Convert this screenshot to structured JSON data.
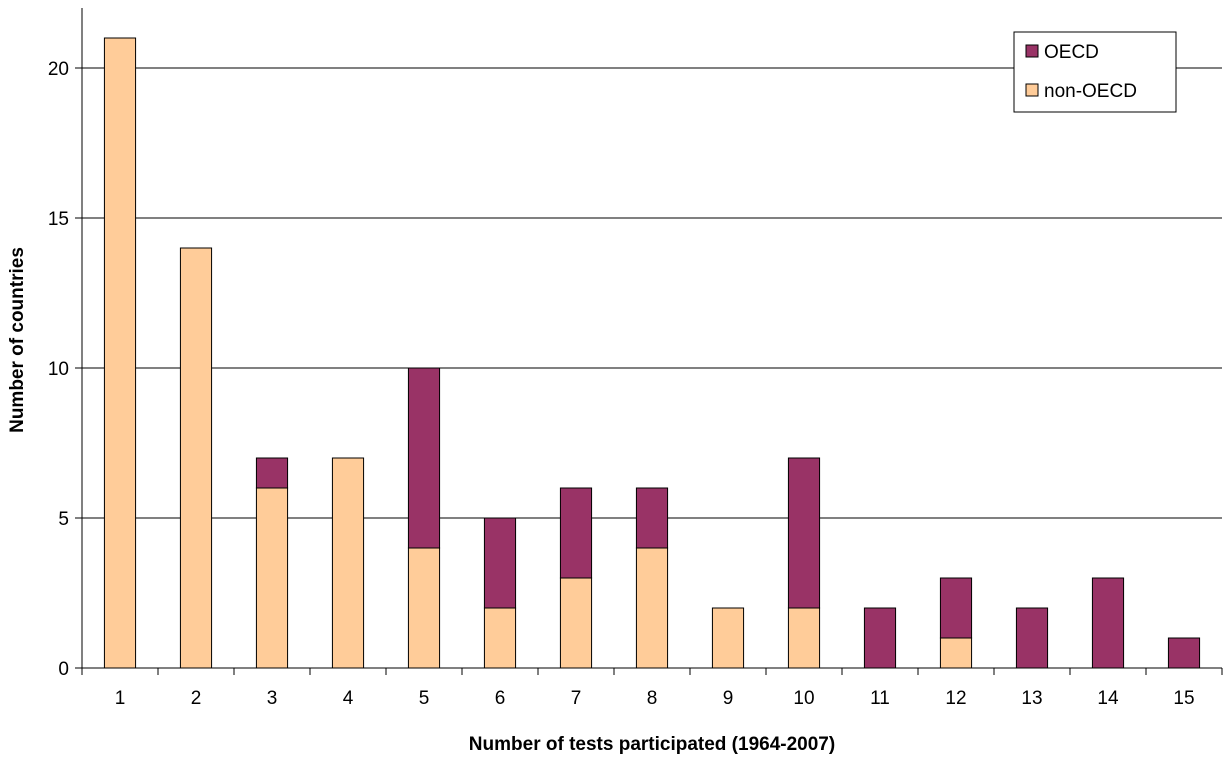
{
  "chart_data": {
    "type": "bar",
    "stacked": true,
    "categories": [
      "1",
      "2",
      "3",
      "4",
      "5",
      "6",
      "7",
      "8",
      "9",
      "10",
      "11",
      "12",
      "13",
      "14",
      "15"
    ],
    "series": [
      {
        "name": "non-OECD",
        "color": "#FFCC99",
        "values": [
          21,
          14,
          6,
          7,
          4,
          2,
          3,
          4,
          2,
          2,
          0,
          1,
          0,
          0,
          0
        ]
      },
      {
        "name": "OECD",
        "color": "#993366",
        "values": [
          0,
          0,
          1,
          0,
          6,
          3,
          3,
          2,
          0,
          5,
          2,
          2,
          2,
          3,
          1
        ]
      }
    ],
    "xlabel": "Number of tests participated (1964-2007)",
    "ylabel": "Number of countries",
    "ylim": [
      0,
      22
    ],
    "yticks": [
      "0",
      "5",
      "10",
      "15",
      "20"
    ],
    "grid": true,
    "legend_position": "top-right",
    "legend_order": [
      "OECD",
      "non-OECD"
    ]
  }
}
